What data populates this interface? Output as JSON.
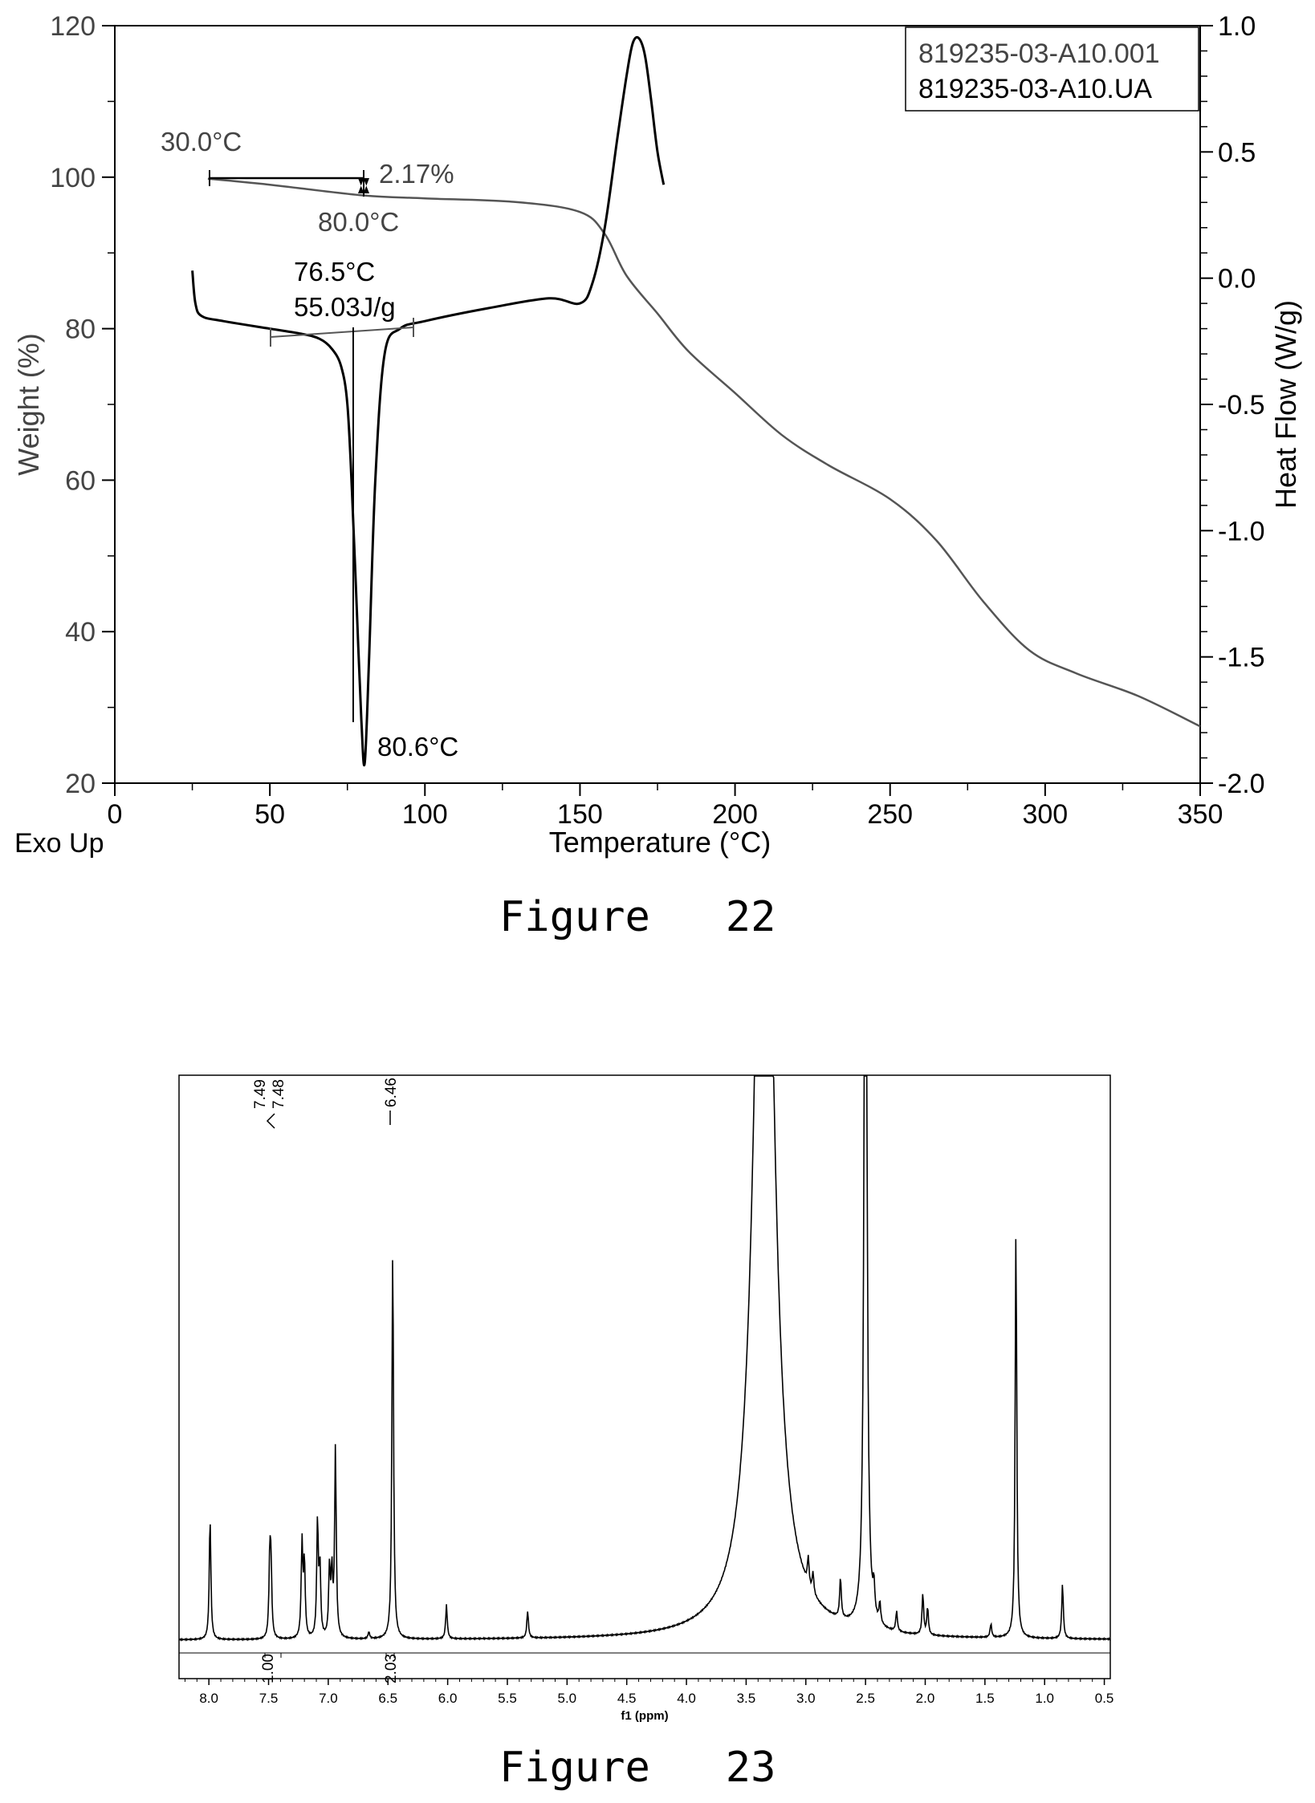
{
  "figures": [
    {
      "caption": "Figure   22",
      "chart_data": {
        "type": "line",
        "xlabel": "Temperature (°C)",
        "ylabel": "Weight (%)",
        "y2label": "Heat Flow (W/g)",
        "corner_label": "Exo Up",
        "xlim": [
          0,
          350
        ],
        "ylim": [
          20,
          120
        ],
        "y2lim": [
          -2.0,
          1.0
        ],
        "x_ticks": [
          "0",
          "50",
          "100",
          "150",
          "200",
          "250",
          "300",
          "350"
        ],
        "y_ticks": [
          "20",
          "40",
          "60",
          "80",
          "100",
          "120"
        ],
        "y2_ticks": [
          "-2.0",
          "-1.5",
          "-1.0",
          "-0.5",
          "0.0",
          "0.5",
          "1.0"
        ],
        "legend": [
          "819235-03-A10.001",
          "819235-03-A10.UA"
        ],
        "legend_position": "top-right",
        "series": [
          {
            "name": "819235-03-A10.001",
            "axis": "left",
            "x": [
              30,
              50,
              80,
              100,
              130,
              150,
              158,
              165,
              175,
              185,
              200,
              215,
              230,
              250,
              265,
              280,
              295,
              310,
              330,
              350
            ],
            "y": [
              99.8,
              99.0,
              97.6,
              97.2,
              96.7,
              95.4,
              92.5,
              87.0,
              82.0,
              77.0,
              71.5,
              66.0,
              62.0,
              57.5,
              52.0,
              44.0,
              37.5,
              34.5,
              31.5,
              27.5
            ]
          },
          {
            "name": "819235-03-A10.UA",
            "axis": "right",
            "x": [
              25,
              26,
              28,
              35,
              50,
              60,
              66,
              70,
              73,
              75,
              76.5,
              78,
              79.5,
              80.6,
              82,
              84,
              87,
              92,
              100,
              120,
              140,
              150,
              154,
              158,
              162,
              165,
              167,
              169,
              171,
              173,
              175,
              177
            ],
            "y": [
              0.03,
              -0.1,
              -0.15,
              -0.17,
              -0.2,
              -0.22,
              -0.24,
              -0.28,
              -0.35,
              -0.5,
              -0.85,
              -1.3,
              -1.75,
              -1.92,
              -1.5,
              -0.8,
              -0.3,
              -0.2,
              -0.17,
              -0.12,
              -0.08,
              -0.1,
              -0.02,
              0.2,
              0.55,
              0.8,
              0.93,
              0.95,
              0.88,
              0.7,
              0.5,
              0.37
            ]
          }
        ],
        "annotations": {
          "start_temp": "30.0°C",
          "end_temp": "80.0°C",
          "weight_loss": "2.17%",
          "onset_temp": "76.5°C",
          "enthalpy": "55.03J/g",
          "peak_temp": "80.6°C"
        }
      }
    },
    {
      "caption": "Figure   23",
      "chart_data": {
        "type": "line",
        "xlabel": "f1 (ppm)",
        "xlim": [
          8.25,
          0.45
        ],
        "x_reversed": true,
        "x_ticks": [
          "8.0",
          "7.5",
          "7.0",
          "6.5",
          "6.0",
          "5.5",
          "5.0",
          "4.5",
          "4.0",
          "3.5",
          "3.0",
          "2.5",
          "2.0",
          "1.5",
          "1.0",
          "0.5"
        ],
        "peak_labels": [
          "7.49",
          "7.48",
          "6.46"
        ],
        "integrals": [
          {
            "ppm": 7.5,
            "value": "1.00"
          },
          {
            "ppm": 6.46,
            "value": "2.03"
          }
        ],
        "peaks": [
          {
            "ppm": 7.99,
            "h": 0.18
          },
          {
            "ppm": 7.49,
            "h": 0.11
          },
          {
            "ppm": 7.48,
            "h": 0.1
          },
          {
            "ppm": 7.22,
            "h": 0.14
          },
          {
            "ppm": 7.2,
            "h": 0.11
          },
          {
            "ppm": 7.09,
            "h": 0.17
          },
          {
            "ppm": 7.07,
            "h": 0.1
          },
          {
            "ppm": 6.99,
            "h": 0.1
          },
          {
            "ppm": 6.97,
            "h": 0.09
          },
          {
            "ppm": 6.94,
            "h": 0.28
          },
          {
            "ppm": 6.66,
            "h": 0.01
          },
          {
            "ppm": 6.46,
            "h": 0.58
          },
          {
            "ppm": 6.01,
            "h": 0.05
          },
          {
            "ppm": 5.33,
            "h": 0.04
          },
          {
            "ppm": 3.35,
            "h": 1.5
          },
          {
            "ppm": 2.98,
            "h": 0.04
          },
          {
            "ppm": 2.94,
            "h": 0.03
          },
          {
            "ppm": 2.71,
            "h": 0.06
          },
          {
            "ppm": 2.5,
            "h": 1.6
          },
          {
            "ppm": 2.43,
            "h": 0.04
          },
          {
            "ppm": 2.38,
            "h": 0.03
          },
          {
            "ppm": 2.24,
            "h": 0.03
          },
          {
            "ppm": 2.02,
            "h": 0.06
          },
          {
            "ppm": 1.98,
            "h": 0.04
          },
          {
            "ppm": 1.45,
            "h": 0.02
          },
          {
            "ppm": 1.24,
            "h": 0.6
          },
          {
            "ppm": 0.85,
            "h": 0.08
          }
        ]
      }
    }
  ]
}
